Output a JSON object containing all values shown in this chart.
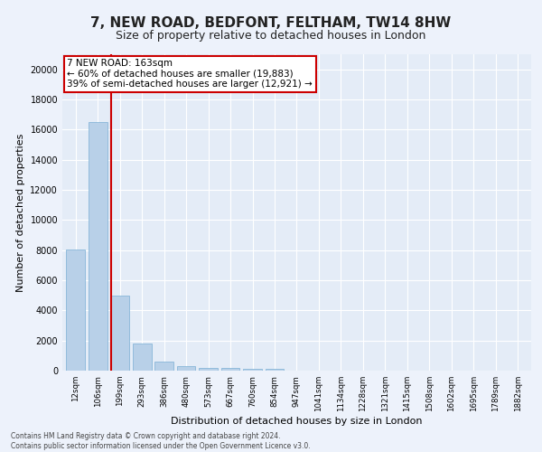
{
  "title": "7, NEW ROAD, BEDFONT, FELTHAM, TW14 8HW",
  "subtitle": "Size of property relative to detached houses in London",
  "xlabel": "Distribution of detached houses by size in London",
  "ylabel": "Number of detached properties",
  "categories": [
    "12sqm",
    "106sqm",
    "199sqm",
    "293sqm",
    "386sqm",
    "480sqm",
    "573sqm",
    "667sqm",
    "760sqm",
    "854sqm",
    "947sqm",
    "1041sqm",
    "1134sqm",
    "1228sqm",
    "1321sqm",
    "1415sqm",
    "1508sqm",
    "1602sqm",
    "1695sqm",
    "1789sqm",
    "1882sqm"
  ],
  "values": [
    8050,
    16500,
    5000,
    1800,
    620,
    310,
    210,
    155,
    110,
    95,
    0,
    0,
    0,
    0,
    0,
    0,
    0,
    0,
    0,
    0,
    0
  ],
  "bar_color": "#b8d0e8",
  "bar_edge_color": "#7aafd4",
  "annotation_text_line1": "7 NEW ROAD: 163sqm",
  "annotation_text_line2": "← 60% of detached houses are smaller (19,883)",
  "annotation_text_line3": "39% of semi-detached houses are larger (12,921) →",
  "annotation_box_color": "#ffffff",
  "annotation_box_edge": "#cc0000",
  "vline_color": "#cc0000",
  "vline_x_data": 1.614,
  "ylim": [
    0,
    21000
  ],
  "yticks": [
    0,
    2000,
    4000,
    6000,
    8000,
    10000,
    12000,
    14000,
    16000,
    18000,
    20000
  ],
  "footer_line1": "Contains HM Land Registry data © Crown copyright and database right 2024.",
  "footer_line2": "Contains public sector information licensed under the Open Government Licence v3.0.",
  "background_color": "#edf2fb",
  "plot_bg_color": "#e4ecf7",
  "title_fontsize": 11,
  "subtitle_fontsize": 9,
  "ylabel_fontsize": 8,
  "xlabel_fontsize": 8,
  "tick_fontsize": 7,
  "annotation_fontsize": 7.5
}
